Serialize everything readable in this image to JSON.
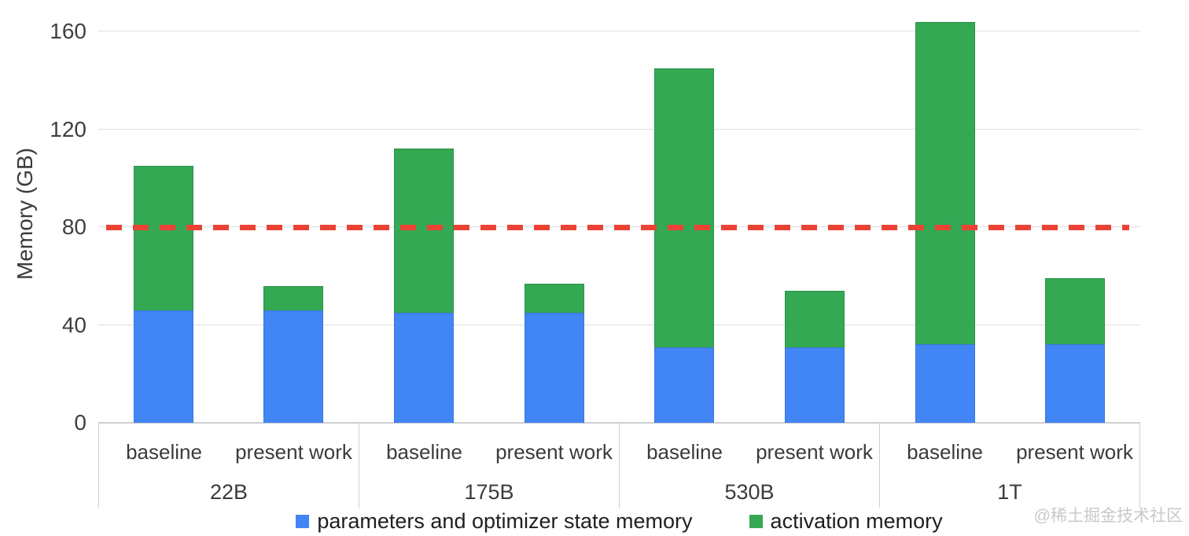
{
  "chart_data": {
    "type": "bar",
    "stacked": true,
    "ylabel": "Memory (GB)",
    "ylim": [
      0,
      172
    ],
    "y_ticks": [
      0,
      40,
      80,
      120,
      160
    ],
    "grid": true,
    "groups": [
      "22B",
      "175B",
      "530B",
      "1T"
    ],
    "bar_variants": [
      "baseline",
      "present work"
    ],
    "bars": [
      {
        "group": "22B",
        "variant": "baseline",
        "params_optimizer": 46,
        "activation": 59,
        "total": 105
      },
      {
        "group": "22B",
        "variant": "present work",
        "params_optimizer": 46,
        "activation": 10,
        "total": 56
      },
      {
        "group": "175B",
        "variant": "baseline",
        "params_optimizer": 45,
        "activation": 67,
        "total": 112
      },
      {
        "group": "175B",
        "variant": "present work",
        "params_optimizer": 45,
        "activation": 12,
        "total": 57
      },
      {
        "group": "530B",
        "variant": "baseline",
        "params_optimizer": 31,
        "activation": 114,
        "total": 145
      },
      {
        "group": "530B",
        "variant": "present work",
        "params_optimizer": 31,
        "activation": 23,
        "total": 54
      },
      {
        "group": "1T",
        "variant": "baseline",
        "params_optimizer": 32,
        "activation": 132,
        "total": 164
      },
      {
        "group": "1T",
        "variant": "present work",
        "params_optimizer": 32,
        "activation": 27,
        "total": 59
      }
    ],
    "series": [
      {
        "name": "parameters and optimizer state memory",
        "color": "#4285F4",
        "border_color": "#3a76db"
      },
      {
        "name": "activation memory",
        "color": "#34A853",
        "border_color": "#2c9149"
      }
    ],
    "reference_line": {
      "value": 80,
      "color": "#EA4335",
      "style": "dashed"
    },
    "legend_position": "bottom"
  },
  "colors": {
    "gridline": "#dedede",
    "axis_frame": "#cfcfcf",
    "tick_text": "#3f3f3f"
  },
  "y_axis": {
    "title": "Memory (GB)"
  },
  "legend": {
    "items": [
      {
        "label": "parameters and optimizer state memory",
        "color": "#4285F4"
      },
      {
        "label": "activation memory",
        "color": "#34A853"
      }
    ]
  },
  "watermark": {
    "text": "@稀土掘金技术社区"
  }
}
